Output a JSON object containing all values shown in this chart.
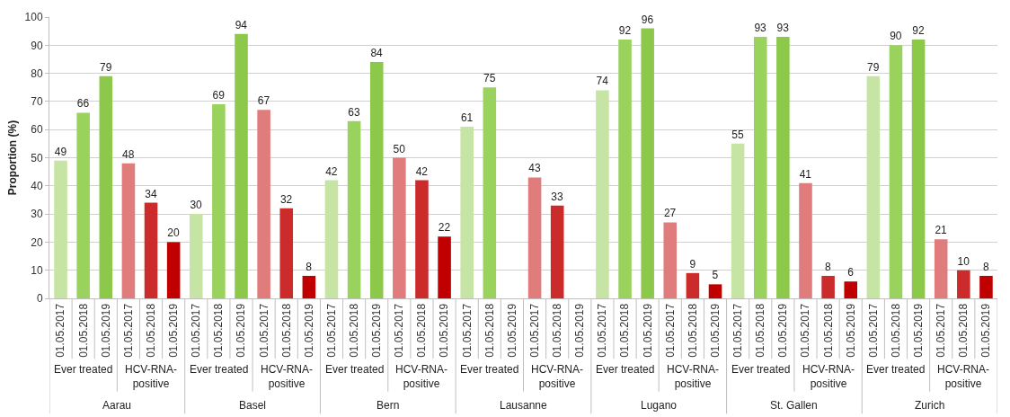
{
  "chart_data": {
    "type": "bar",
    "ylabel": "Proportion (%)",
    "categories": [
      "01.05.2017",
      "01.05.2018",
      "01.05.2019",
      "01.05.2017",
      "01.05.2018",
      "01.05.2019",
      "01.05.2017",
      "01.05.2018",
      "01.05.2019",
      "01.05.2017",
      "01.05.2018",
      "01.05.2019",
      "01.05.2017",
      "01.05.2018",
      "01.05.2019",
      "01.05.2017",
      "01.05.2018",
      "01.05.2019",
      "01.05.2017",
      "01.05.2018",
      "01.05.2019",
      "01.05.2017",
      "01.05.2018",
      "01.05.2019",
      "01.05.2017",
      "01.05.2018",
      "01.05.2019",
      "01.05.2017",
      "01.05.2018",
      "01.05.2019",
      "01.05.2017",
      "01.05.2018",
      "01.05.2019",
      "01.05.2017",
      "01.05.2018",
      "01.05.2019",
      "01.05.2017",
      "01.05.2018",
      "01.05.2019",
      "01.05.2017",
      "01.05.2018",
      "01.05.2019"
    ],
    "values": [
      49,
      66,
      79,
      48,
      34,
      20,
      30,
      69,
      94,
      67,
      32,
      8,
      42,
      63,
      84,
      50,
      42,
      22,
      61,
      75,
      null,
      43,
      33,
      null,
      74,
      92,
      96,
      27,
      9,
      5,
      55,
      93,
      93,
      41,
      8,
      6,
      79,
      90,
      92,
      21,
      10,
      8
    ],
    "colors": [
      "#c6e4a3",
      "#9ad25e",
      "#8cc94a",
      "#e07c7c",
      "#cc2b2b",
      "#c00000",
      "#c6e4a3",
      "#9ad25e",
      "#8cc94a",
      "#e07c7c",
      "#cc2b2b",
      "#c00000",
      "#c6e4a3",
      "#9ad25e",
      "#8cc94a",
      "#e07c7c",
      "#cc2b2b",
      "#c00000",
      "#c6e4a3",
      "#9ad25e",
      "#8cc94a",
      "#e07c7c",
      "#cc2b2b",
      "#c00000",
      "#c6e4a3",
      "#9ad25e",
      "#8cc94a",
      "#e07c7c",
      "#cc2b2b",
      "#c00000",
      "#c6e4a3",
      "#9ad25e",
      "#8cc94a",
      "#e07c7c",
      "#cc2b2b",
      "#c00000",
      "#c6e4a3",
      "#9ad25e",
      "#8cc94a",
      "#e07c7c",
      "#cc2b2b",
      "#c00000"
    ],
    "ylim": [
      0,
      100
    ],
    "yticks": [
      0,
      10,
      20,
      30,
      40,
      50,
      60,
      70,
      80,
      90,
      100
    ],
    "grid": "y",
    "data_labels": true,
    "annotations": [
      "Ever treated",
      "HCV-RNA-positive",
      "Aarau",
      "Ever treated",
      "HCV-RNA-positive",
      "Basel",
      "Ever treated",
      "HCV-RNA-positive",
      "Bern",
      "Ever treated",
      "HCV-RNA-positive",
      "Lausanne",
      "Ever treated",
      "HCV-RNA-positive",
      "Lugano",
      "Ever treated",
      "HCV-RNA-positive",
      "St. Gallen",
      "Ever treated",
      "HCV-RNA-positive",
      "Zurich"
    ]
  }
}
